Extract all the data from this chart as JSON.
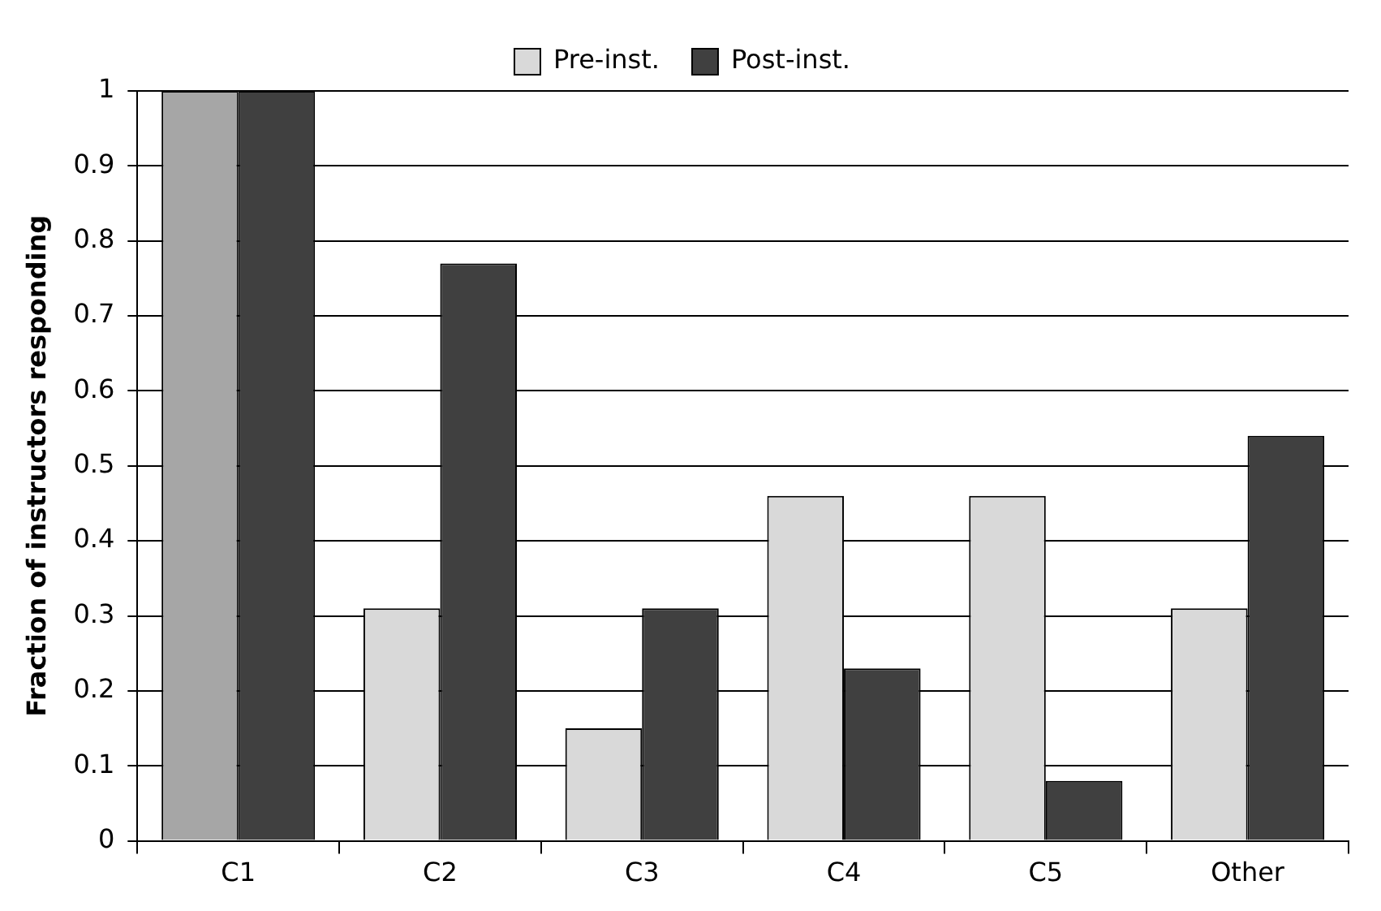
{
  "chart_data": {
    "type": "bar",
    "ylabel": "Fraction of instructors responding",
    "categories": [
      "C1",
      "C2",
      "C3",
      "C4",
      "C5",
      "Other"
    ],
    "series": [
      {
        "name": "Pre-inst.",
        "color": "#d9d9d9",
        "colors": [
          "#a6a6a6",
          "#d9d9d9",
          "#d9d9d9",
          "#d9d9d9",
          "#d9d9d9",
          "#d9d9d9"
        ],
        "values": [
          1,
          0.31,
          0.15,
          0.46,
          0.46,
          0.31
        ]
      },
      {
        "name": "Post-inst.",
        "color": "#404040",
        "values": [
          1,
          0.77,
          0.31,
          0.23,
          0.08,
          0.54
        ]
      }
    ],
    "ylim": [
      0,
      1
    ],
    "yticks": [
      0,
      0.1,
      0.2,
      0.3,
      0.4,
      0.5,
      0.6,
      0.7,
      0.8,
      0.9,
      1
    ],
    "grid": "y",
    "legend": "top"
  }
}
